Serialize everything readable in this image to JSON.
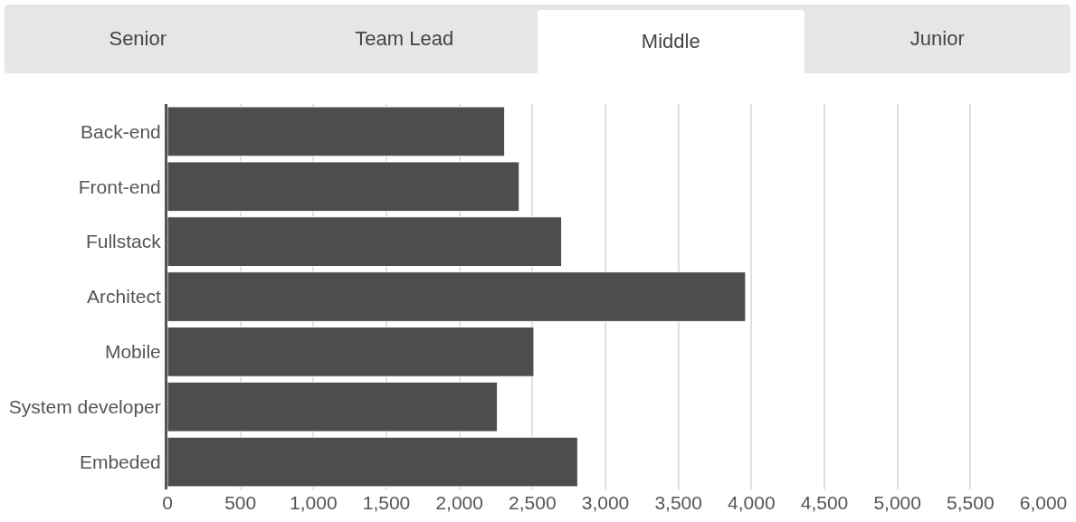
{
  "chart_data": {
    "type": "bar",
    "orientation": "horizontal",
    "annotations": [
      "Senior",
      "Team Lead",
      "Middle",
      "Junior"
    ],
    "categories": [
      "Back-end",
      "Front-end",
      "Fullstack",
      "Architect",
      "Mobile",
      "System developer",
      "Embeded"
    ],
    "values": [
      2310,
      2410,
      2700,
      3960,
      2510,
      2260,
      2810
    ],
    "color": "#4d4d4d",
    "xlim": [
      0,
      6000
    ],
    "xticks": [
      0,
      500,
      {
        "value": 1000,
        "label": "1,000"
      },
      {
        "value": 1500,
        "label": "1,500"
      },
      {
        "value": 2000,
        "label": "2,000"
      },
      {
        "value": 2500,
        "label": "2,500"
      },
      {
        "value": 3000,
        "label": "3,000"
      },
      {
        "value": 3500,
        "label": "3,500"
      },
      {
        "value": 4000,
        "label": "4,000"
      },
      {
        "value": 4500,
        "label": "4,500"
      },
      {
        "value": 5000,
        "label": "5,000"
      },
      {
        "value": 5500,
        "label": "5,500"
      },
      {
        "value": 6000,
        "label": "6,000"
      }
    ],
    "grid": "x"
  }
}
